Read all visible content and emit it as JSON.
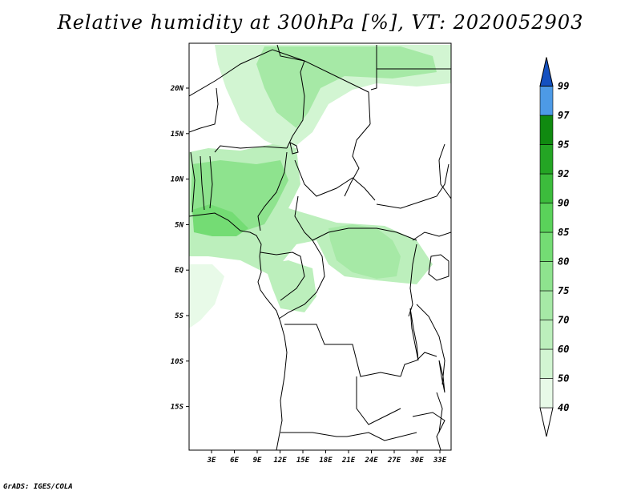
{
  "title": "Relative humidity at 300hPa [%], VT: 2020052903",
  "credit": "GrADS: IGES/COLA",
  "map": {
    "lat_labels": [
      "20N",
      "15N",
      "10N",
      "5N",
      "EQ",
      "5S",
      "10S",
      "15S"
    ],
    "lon_labels": [
      "3E",
      "6E",
      "9E",
      "12E",
      "15E",
      "18E",
      "21E",
      "24E",
      "27E",
      "30E",
      "33E"
    ]
  },
  "colorbar": {
    "levels": [
      "40",
      "50",
      "60",
      "70",
      "75",
      "80",
      "85",
      "90",
      "92",
      "95",
      "97",
      "99"
    ],
    "colors": [
      "#e8fae8",
      "#d2f5d2",
      "#bcefbc",
      "#a6e9a6",
      "#8ee38e",
      "#74dc74",
      "#5ad25a",
      "#3cbc3c",
      "#24a524",
      "#108a10",
      "#4d9ae6",
      "#2870d6",
      "#1450c0"
    ]
  }
}
